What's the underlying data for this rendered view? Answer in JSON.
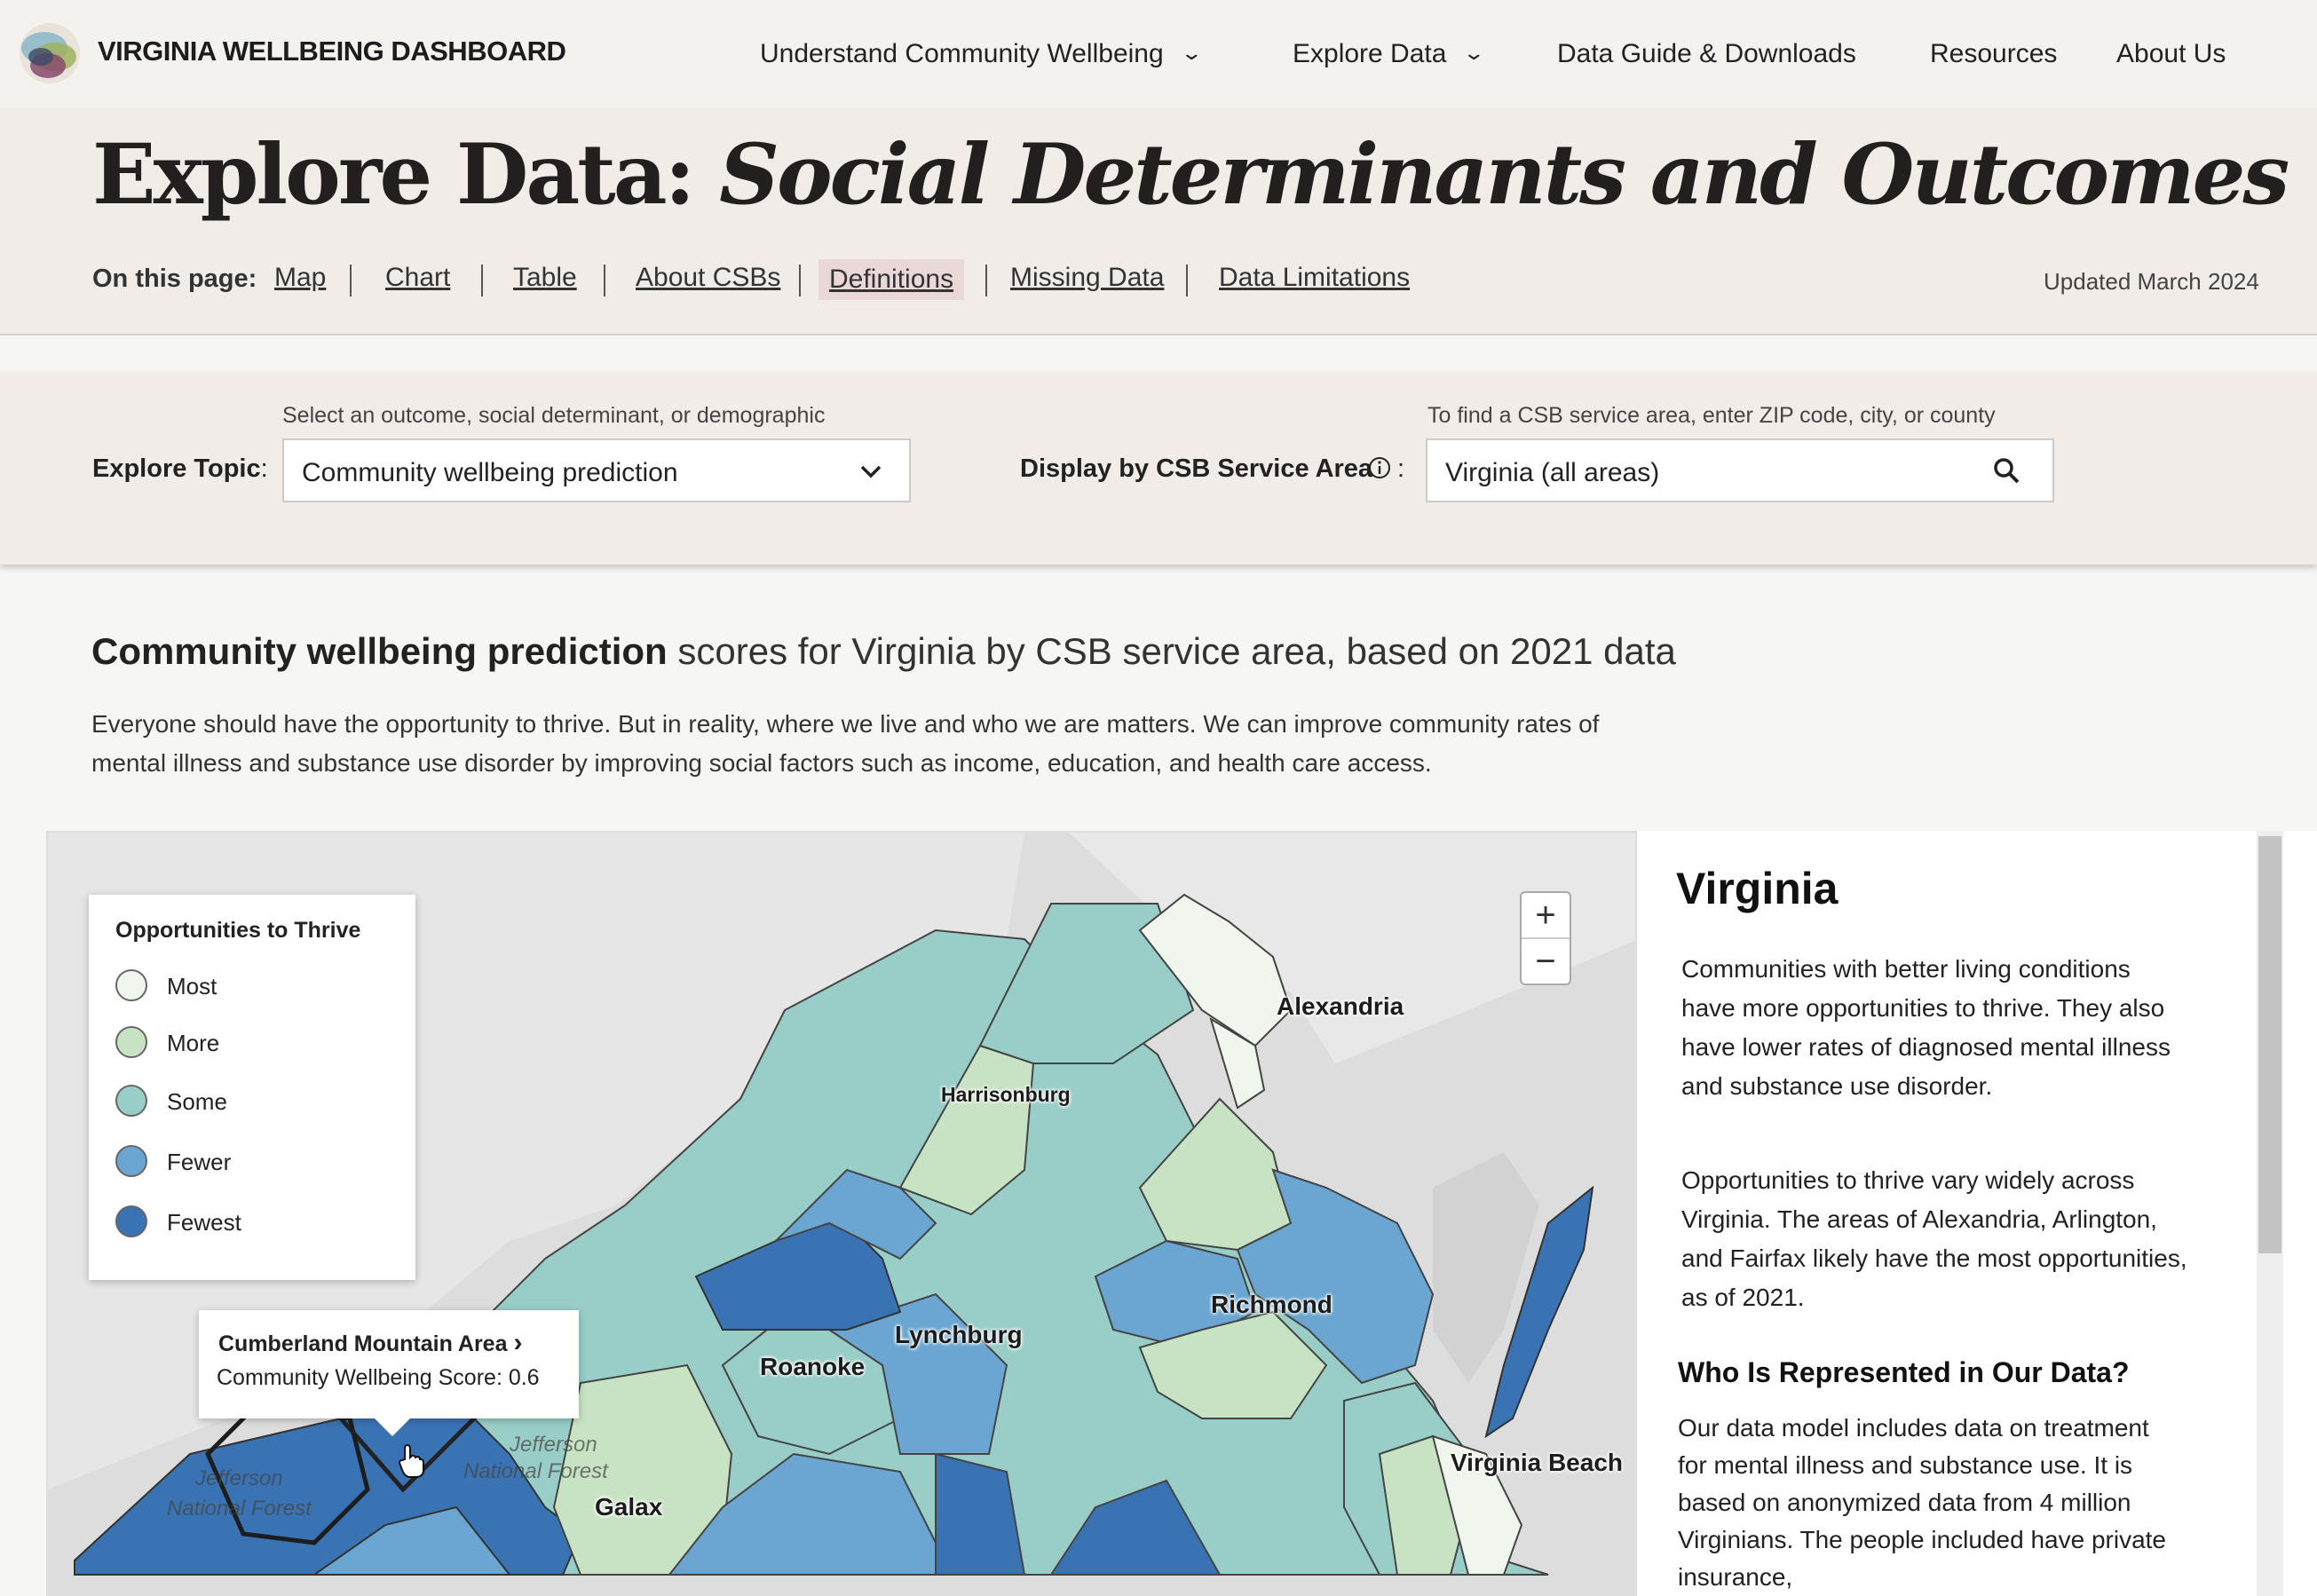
{
  "header": {
    "brand": "VIRGINIA WELLBEING DASHBOARD",
    "nav": [
      {
        "label": "Understand Community Wellbeing",
        "has_dropdown": true
      },
      {
        "label": "Explore Data",
        "has_dropdown": true
      },
      {
        "label": "Data Guide & Downloads",
        "has_dropdown": false
      },
      {
        "label": "Resources",
        "has_dropdown": false
      },
      {
        "label": "About Us",
        "has_dropdown": false
      }
    ],
    "chevron": "⌄"
  },
  "hero": {
    "title_prefix": "Explore Data: ",
    "title_italic": "Social Determinants and Outcomes",
    "on_this_page_label": "On this page:",
    "links": [
      "Map",
      "Chart",
      "Table",
      "About CSBs",
      "Definitions",
      "Missing Data",
      "Data Limitations"
    ],
    "active_link": "Definitions",
    "updated": "Updated March 2024"
  },
  "controls": {
    "topic_hint": "Select an outcome, social determinant, or demographic",
    "topic_label": "Explore Topic",
    "topic_colon": ":",
    "topic_value": "Community wellbeing prediction",
    "csb_hint": "To find a CSB service area, enter ZIP code, city, or county",
    "csb_label": "Display by CSB Service Area",
    "csb_colon": ":",
    "csb_value": "Virginia (all areas)"
  },
  "main": {
    "heading_bold": "Community wellbeing prediction",
    "heading_rest": " scores for Virginia by CSB service area, based on 2021 data",
    "intro": "Everyone should have the opportunity to thrive. But in reality, where we live and who we are matters. We can improve community rates of mental illness and substance use disorder by improving social factors such as income, education, and health care access."
  },
  "map": {
    "legend_title": "Opportunities to Thrive",
    "legend": [
      {
        "label": "Most",
        "color": "#f0f6ee"
      },
      {
        "label": "More",
        "color": "#c8e3c3"
      },
      {
        "label": "Some",
        "color": "#99cdc7"
      },
      {
        "label": "Fewer",
        "color": "#6aa6d1"
      },
      {
        "label": "Fewest",
        "color": "#3a73b3"
      }
    ],
    "zoom_in": "+",
    "zoom_out": "−",
    "tooltip_area": "Cumberland Mountain Area",
    "tooltip_arrow": "›",
    "tooltip_score": "Community Wellbeing Score: 0.6",
    "cities": [
      "Alexandria",
      "Harrisonburg",
      "Richmond",
      "Lynchburg",
      "Roanoke",
      "Virginia Beach",
      "Galax"
    ],
    "forest_labels": [
      "Jefferson",
      "National Forest",
      "Jefferson",
      "National Forest"
    ]
  },
  "side": {
    "title": "Virginia",
    "p1": "Communities with better living conditions have more opportunities to thrive. They also have lower rates of diagnosed mental illness and substance use disorder.",
    "p2": "Opportunities to thrive vary widely across Virginia. The areas of Alexandria, Arlington, and Fairfax likely have the most opportunities, as of 2021.",
    "h3": "Who Is Represented in Our Data?",
    "p3": "Our data model includes data on treatment for mental illness and substance use. It is based on anonymized data from 4 million Virginians. The people included have private insurance,"
  }
}
